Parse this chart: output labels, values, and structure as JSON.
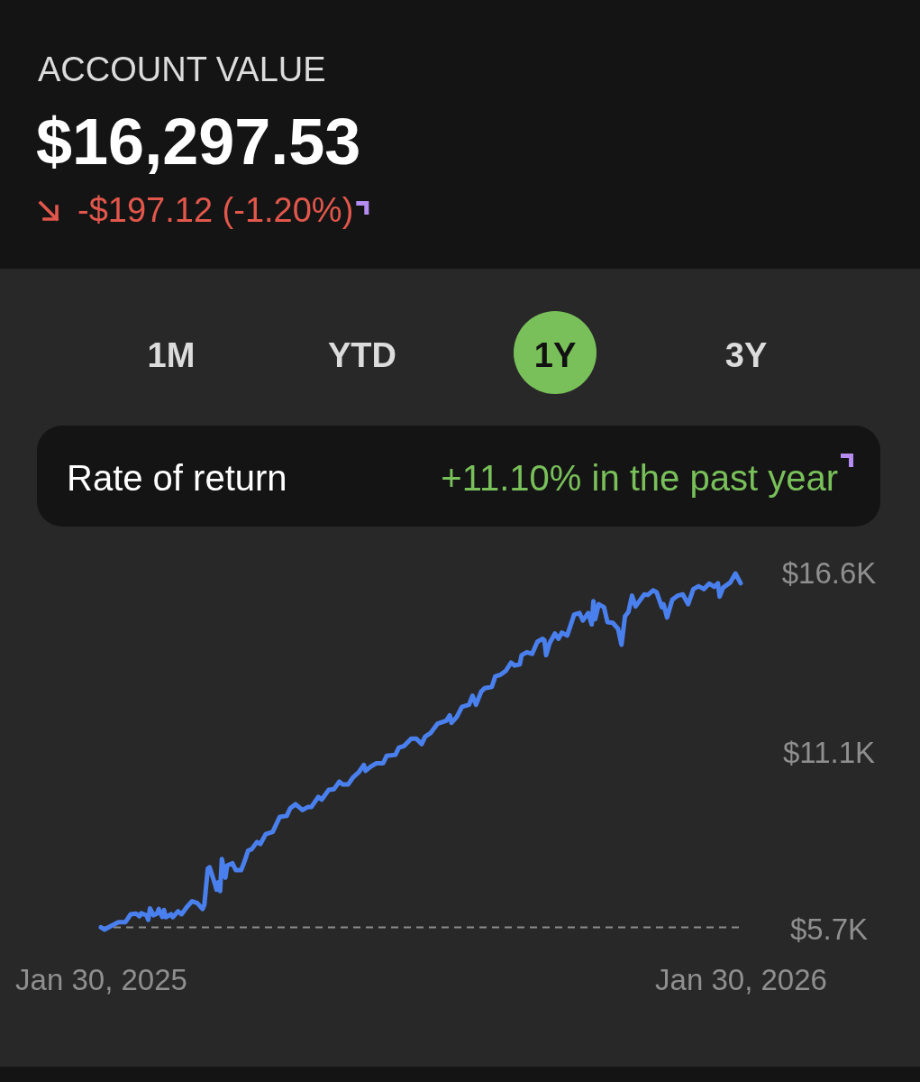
{
  "chart_data": {
    "type": "line",
    "title": "ACCOUNT VALUE",
    "subtitle": "$16,297.53",
    "annotations": [
      "-$197.12 (-1.20%)",
      "1M",
      "YTD",
      "1Y",
      "3Y",
      "Rate of return",
      "+11.10% in the past year"
    ],
    "x": [
      "2025-01-30",
      "2025-02-01",
      "2025-02-04",
      "2025-02-09",
      "2025-02-13",
      "2025-02-16",
      "2025-02-19",
      "2025-02-21",
      "2025-02-22",
      "2025-02-25",
      "2025-02-26",
      "2025-02-27",
      "2025-03-01",
      "2025-03-03",
      "2025-03-04",
      "2025-03-06",
      "2025-03-07",
      "2025-03-08",
      "2025-03-11",
      "2025-03-12",
      "2025-03-15",
      "2025-03-17",
      "2025-03-20",
      "2025-03-23",
      "2025-03-26",
      "2025-03-29",
      "2025-03-30",
      "2025-04-01",
      "2025-04-02",
      "2025-04-05",
      "2025-04-06",
      "2025-04-07",
      "2025-04-08",
      "2025-04-09",
      "2025-04-11",
      "2025-04-12",
      "2025-04-15",
      "2025-04-17",
      "2025-04-20",
      "2025-04-22",
      "2025-04-24",
      "2025-04-26",
      "2025-04-29",
      "2025-05-01",
      "2025-05-04",
      "2025-05-08",
      "2025-05-12",
      "2025-05-16",
      "2025-05-18",
      "2025-05-21",
      "2025-05-25",
      "2025-05-28",
      "2025-05-30",
      "2025-06-03",
      "2025-06-05",
      "2025-06-09",
      "2025-06-12",
      "2025-06-15",
      "2025-06-17",
      "2025-06-20",
      "2025-06-23",
      "2025-06-26",
      "2025-06-29",
      "2025-06-30",
      "2025-07-03",
      "2025-07-06",
      "2025-07-10",
      "2025-07-12",
      "2025-07-17",
      "2025-07-19",
      "2025-07-22",
      "2025-07-26",
      "2025-07-29",
      "2025-08-01",
      "2025-08-03",
      "2025-08-06",
      "2025-08-10",
      "2025-08-15",
      "2025-08-17",
      "2025-08-18",
      "2025-08-21",
      "2025-08-24",
      "2025-08-28",
      "2025-08-30",
      "2025-09-01",
      "2025-09-04",
      "2025-09-06",
      "2025-09-10",
      "2025-09-12",
      "2025-09-15",
      "2025-09-18",
      "2025-09-21",
      "2025-09-23",
      "2025-09-26",
      "2025-09-27",
      "2025-09-30",
      "2025-10-03",
      "2025-10-06",
      "2025-10-09",
      "2025-10-10",
      "2025-10-11",
      "2025-10-13",
      "2025-10-16",
      "2025-10-18",
      "2025-10-20",
      "2025-10-23",
      "2025-10-27",
      "2025-10-30",
      "2025-11-01",
      "2025-11-04",
      "2025-11-06",
      "2025-11-07",
      "2025-11-08",
      "2025-11-10",
      "2025-11-13",
      "2025-11-15",
      "2025-11-18",
      "2025-11-21",
      "2025-11-23",
      "2025-11-25",
      "2025-11-27",
      "2025-11-29",
      "2025-12-01",
      "2025-12-06",
      "2025-12-08",
      "2025-12-11",
      "2025-12-13",
      "2025-12-16",
      "2025-12-17",
      "2025-12-19",
      "2025-12-22",
      "2025-12-25",
      "2025-12-28",
      "2025-12-31",
      "2026-01-03",
      "2026-01-06",
      "2026-01-09",
      "2026-01-12",
      "2026-01-15",
      "2026-01-17",
      "2026-01-18",
      "2026-01-20",
      "2026-01-24",
      "2026-01-27",
      "2026-01-30"
    ],
    "series": [
      {
        "color": "#4a80ee",
        "values": [
          5.77,
          5.7,
          5.79,
          5.93,
          5.93,
          6.17,
          6.19,
          6.11,
          6.2,
          6.14,
          6.0,
          6.35,
          6.14,
          6.19,
          6.33,
          6.09,
          6.3,
          6.08,
          6.17,
          6.08,
          6.26,
          6.17,
          6.39,
          6.57,
          6.51,
          6.33,
          6.46,
          7.57,
          7.61,
          7.11,
          6.92,
          7.15,
          6.88,
          7.86,
          7.29,
          7.66,
          7.73,
          7.52,
          7.52,
          7.8,
          8.12,
          8.16,
          8.38,
          8.32,
          8.62,
          8.69,
          9.15,
          9.18,
          9.41,
          9.54,
          9.36,
          9.45,
          9.45,
          9.76,
          9.68,
          9.98,
          10.0,
          10.23,
          10.14,
          10.14,
          10.37,
          10.51,
          10.74,
          10.56,
          10.69,
          10.79,
          10.79,
          11.02,
          11.05,
          11.27,
          11.32,
          11.54,
          11.54,
          11.38,
          11.61,
          11.71,
          12.0,
          12.09,
          12.26,
          12.03,
          12.21,
          12.52,
          12.58,
          12.86,
          12.58,
          12.99,
          13.09,
          13.13,
          13.45,
          13.5,
          13.62,
          13.87,
          13.78,
          13.82,
          14.1,
          14.19,
          14.14,
          14.51,
          14.6,
          14.56,
          14.1,
          14.47,
          14.76,
          14.6,
          14.79,
          14.7,
          15.34,
          15.39,
          15.16,
          15.39,
          15.04,
          15.75,
          15.2,
          15.66,
          15.57,
          15.11,
          15.09,
          14.91,
          14.42,
          15.29,
          15.43,
          15.92,
          15.59,
          15.96,
          15.94,
          16.08,
          16.03,
          15.57,
          15.66,
          15.25,
          15.8,
          15.92,
          15.96,
          15.66,
          16.12,
          16.21,
          16.12,
          16.29,
          16.19,
          16.3,
          15.89,
          16.17,
          16.32,
          16.6,
          16.3
        ]
      }
    ],
    "xlim": [
      "2025-01-30",
      "2026-01-30"
    ],
    "xticks": [
      {
        "value": "2025-01-30",
        "label": "Jan 30, 2025"
      },
      {
        "value": "2026-01-30",
        "label": "Jan 30, 2026"
      }
    ],
    "ylim": [
      5.7,
      16.6
    ],
    "yticks": [
      {
        "value": 5.7,
        "label": "$5.7K"
      },
      {
        "value": 11.1,
        "label": "$11.1K"
      },
      {
        "value": 16.6,
        "label": "$16.6K"
      }
    ],
    "ref_lines": [
      {
        "axis": "y",
        "value": 5.77,
        "color": "#8c8c8c",
        "line_style": "dashed"
      }
    ],
    "grid": false,
    "marker": "none",
    "line_style": "solid"
  }
}
